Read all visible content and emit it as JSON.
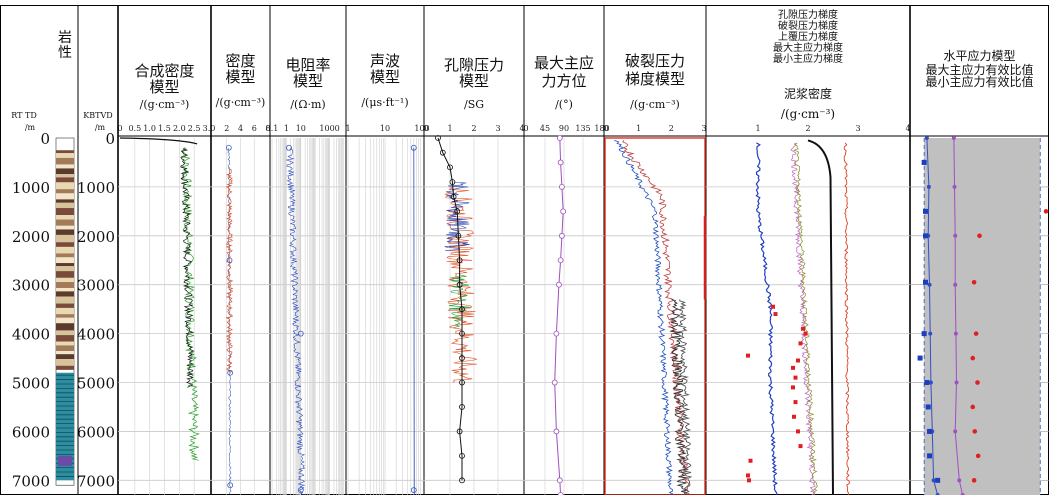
{
  "chart_data": {
    "type": "line",
    "depth_axis": {
      "label_rt": "RT TD",
      "unit_rt": "/m",
      "label_kb": "KBTVD",
      "unit_kb": "/m",
      "ticks": [
        0,
        1000,
        2000,
        3000,
        4000,
        5000,
        6000,
        7000
      ],
      "range": [
        0,
        7300
      ]
    },
    "tracks": [
      {
        "id": "lith",
        "title": "岩性"
      },
      {
        "id": "density_syn",
        "title": "合成密度\n模型",
        "unit": "/(g·cm⁻³)",
        "ticks": [
          "0",
          "0.5",
          "1.0",
          "1.5",
          "2.0",
          "2.5",
          "3.0"
        ],
        "range": [
          0,
          3
        ]
      },
      {
        "id": "density",
        "title": "密度\n模型",
        "unit": "/(g·cm⁻³)",
        "ticks": [
          "2",
          "4",
          "6",
          "8"
        ],
        "range": [
          0,
          8
        ]
      },
      {
        "id": "resist",
        "title": "电阻率\n模型",
        "unit": "/(Ω·m)",
        "ticks": [
          "0.1",
          "1",
          "10",
          "1000"
        ],
        "range": [
          0.1,
          10000
        ],
        "scale": "log"
      },
      {
        "id": "sonic",
        "title": "声波\n模型",
        "unit": "/(μs·ft⁻¹)",
        "ticks": [
          "1",
          "10",
          "100"
        ],
        "range": [
          1,
          100
        ],
        "scale": "log"
      },
      {
        "id": "pore",
        "title": "孔隙压力\n模型",
        "unit": "/SG",
        "ticks": [
          "0",
          "1",
          "2",
          "3",
          "4"
        ],
        "range": [
          0,
          4
        ]
      },
      {
        "id": "azimuth",
        "title": "最大主应\n力方位",
        "unit": "/(°)",
        "ticks": [
          "0",
          "45",
          "90",
          "135",
          "180"
        ],
        "range": [
          0,
          180
        ]
      },
      {
        "id": "frac",
        "title": "破裂压力\n梯度模型",
        "unit": "/(g·cm⁻³)",
        "ticks": [
          "0",
          "1",
          "2",
          "3"
        ],
        "range": [
          0,
          3
        ]
      },
      {
        "id": "grad",
        "title": "孔隙压力梯度\n破裂压力梯度\n上覆压力梯度\n最大主应力梯度\n最小主应力梯度",
        "title2": "泥浆密度",
        "unit": "/(g·cm⁻³)",
        "ticks": [
          "1",
          "2",
          "3",
          "4"
        ],
        "range": [
          0,
          4
        ]
      },
      {
        "id": "ratio",
        "title": "水平应力模型",
        "title2": "最大主应力有效比值\n最小主应力有效比值",
        "range": [
          0,
          2
        ]
      }
    ],
    "series": {
      "pore_circles": [
        [
          0,
          0.5
        ],
        [
          300,
          0.7
        ],
        [
          600,
          1.0
        ],
        [
          900,
          1.1
        ],
        [
          1200,
          1.15
        ],
        [
          1500,
          1.3
        ],
        [
          2000,
          1.35
        ],
        [
          2500,
          1.4
        ],
        [
          3000,
          1.4
        ],
        [
          3500,
          1.5
        ],
        [
          4000,
          1.5
        ],
        [
          4500,
          1.5
        ],
        [
          5000,
          1.5
        ],
        [
          5500,
          1.5
        ],
        [
          6000,
          1.4
        ],
        [
          6500,
          1.5
        ],
        [
          7000,
          1.5
        ]
      ],
      "azimuth": [
        [
          0,
          80
        ],
        [
          500,
          82
        ],
        [
          1000,
          85
        ],
        [
          1500,
          88
        ],
        [
          2000,
          85
        ],
        [
          2500,
          82
        ],
        [
          3000,
          78
        ],
        [
          4000,
          72
        ],
        [
          5000,
          68
        ],
        [
          6000,
          72
        ],
        [
          7000,
          80
        ],
        [
          7300,
          82
        ]
      ],
      "density_circles": [
        [
          200,
          2.3
        ],
        [
          2500,
          2.4
        ],
        [
          4800,
          2.5
        ],
        [
          7100,
          2.5
        ]
      ],
      "resist_circles": [
        [
          200,
          1.5
        ],
        [
          4000,
          10
        ],
        [
          7200,
          10
        ]
      ],
      "sonic_circles": [
        [
          200,
          60
        ],
        [
          7200,
          60
        ]
      ],
      "ratio_min": [
        [
          0,
          0.22
        ],
        [
          1000,
          0.25
        ],
        [
          2000,
          0.24
        ],
        [
          3000,
          0.26
        ],
        [
          4000,
          0.27
        ],
        [
          5000,
          0.28
        ],
        [
          6000,
          0.3
        ],
        [
          7000,
          0.32
        ],
        [
          7300,
          0.38
        ]
      ],
      "ratio_max": [
        [
          0,
          0.62
        ],
        [
          1000,
          0.63
        ],
        [
          2000,
          0.64
        ],
        [
          3000,
          0.64
        ],
        [
          4000,
          0.65
        ],
        [
          5000,
          0.66
        ],
        [
          6000,
          0.64
        ],
        [
          7000,
          0.7
        ],
        [
          7300,
          0.75
        ]
      ],
      "ratio_blue_sq": [
        [
          500,
          0.18
        ],
        [
          1500,
          0.2
        ],
        [
          2000,
          0.2
        ],
        [
          2950,
          0.2
        ],
        [
          4000,
          0.18
        ],
        [
          4500,
          0.12
        ],
        [
          5000,
          0.22
        ],
        [
          5500,
          0.24
        ],
        [
          6000,
          0.26
        ],
        [
          6500,
          0.26
        ],
        [
          7000,
          0.38
        ]
      ],
      "ratio_red_dots": [
        [
          1500,
          2.0
        ],
        [
          2000,
          1.0
        ],
        [
          2950,
          0.92
        ],
        [
          4000,
          0.95
        ],
        [
          4500,
          0.9
        ],
        [
          5000,
          0.97
        ],
        [
          5500,
          0.9
        ],
        [
          6000,
          0.93
        ],
        [
          6500,
          0.98
        ],
        [
          7000,
          0.92
        ]
      ]
    }
  }
}
